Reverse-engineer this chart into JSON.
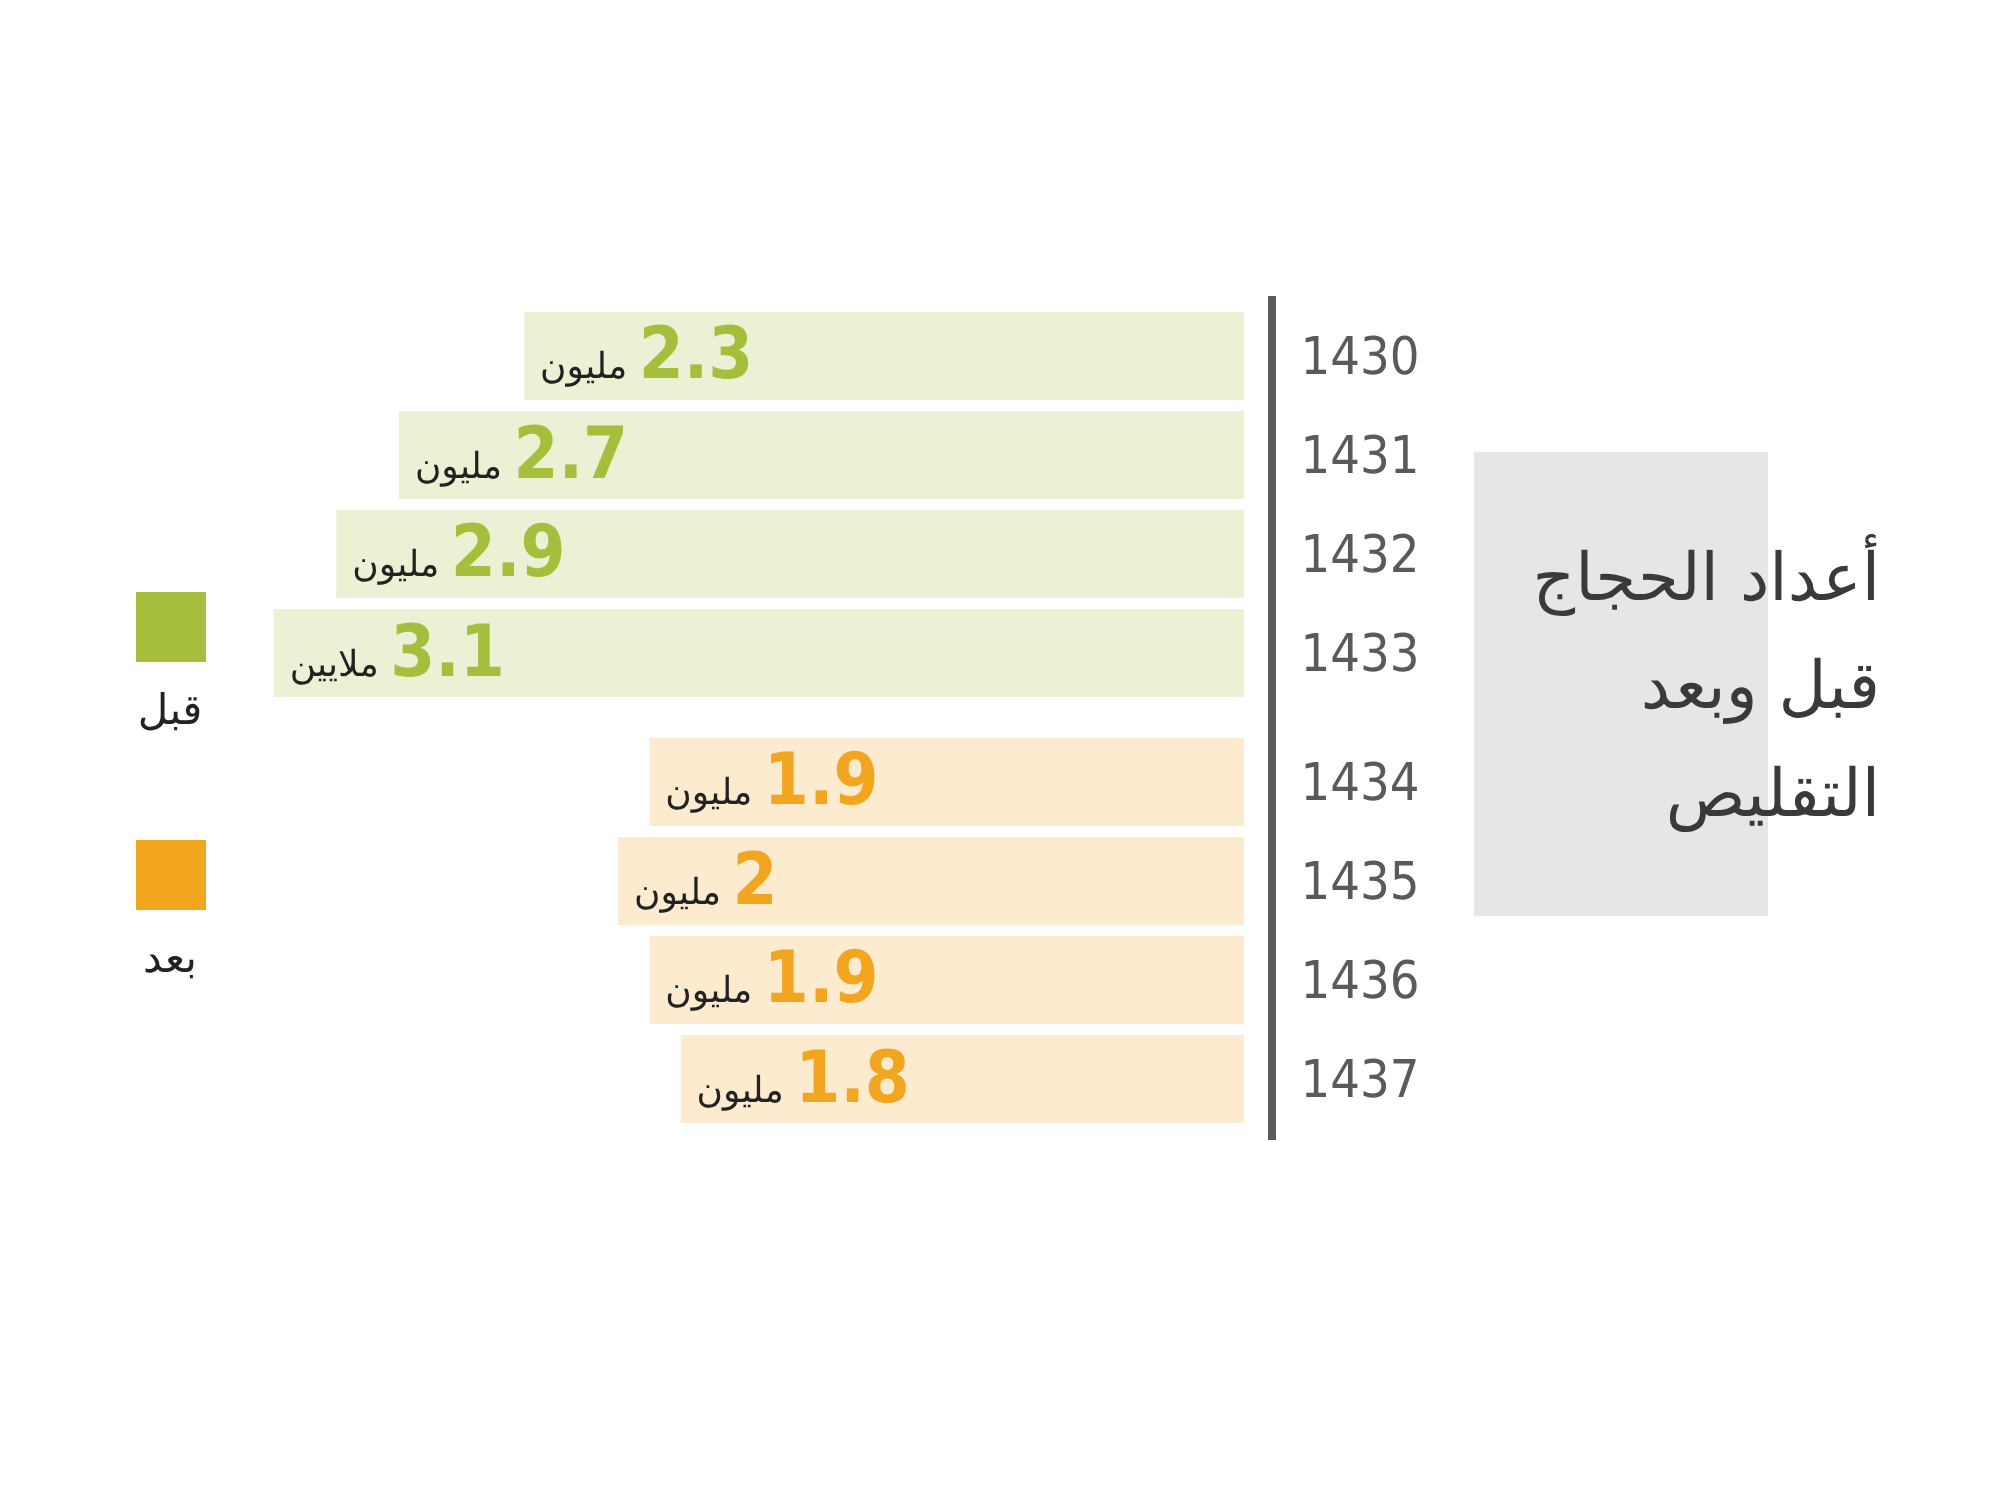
{
  "chart_data": {
    "type": "bar",
    "orientation": "horizontal",
    "title": "أعداد الحجاج قبل وبعد التقليص",
    "legend": "left",
    "categories": [
      "1430",
      "1431",
      "1432",
      "1433",
      "1434",
      "1435",
      "1436",
      "1437"
    ],
    "series": [
      {
        "name": "قبل",
        "color": "#a5bf3c",
        "values": [
          2.3,
          2.7,
          2.9,
          3.1,
          null,
          null,
          null,
          null
        ],
        "value_labels": [
          "2.3 مليون",
          "2.7 مليون",
          "2.9 مليون",
          "3.1 ملايين",
          null,
          null,
          null,
          null
        ]
      },
      {
        "name": "بعد",
        "color": "#f2a51f",
        "values": [
          null,
          null,
          null,
          null,
          1.9,
          2,
          1.9,
          1.8
        ],
        "value_labels": [
          null,
          null,
          null,
          null,
          "1.9 مليون",
          "2 مليون",
          "1.9 مليون",
          "1.8 مليون"
        ]
      }
    ]
  }
}
